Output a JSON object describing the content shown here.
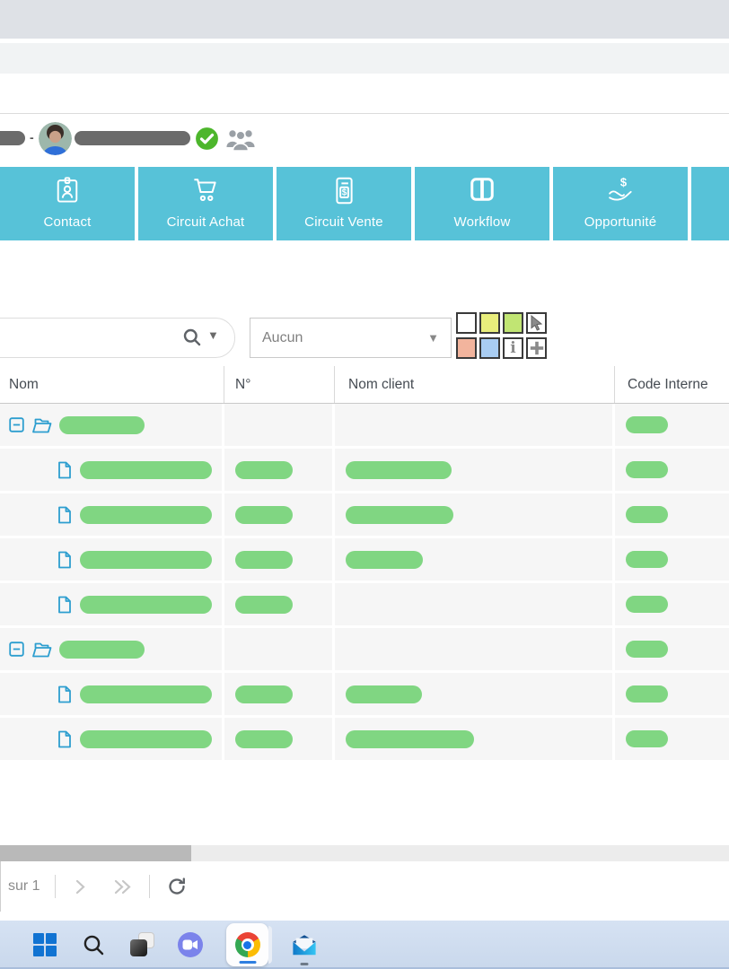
{
  "window": {
    "chrome_strip1_color": "#dee1e6",
    "chrome_strip2_color": "#f1f3f4",
    "taskbar_color": "#cfdeef"
  },
  "record_header": {
    "separator": "-",
    "status": "validated-check",
    "redacted_code_width": 42,
    "redacted_name_width": 129
  },
  "toolbar": {
    "accent_color": "#57c2d8",
    "buttons": [
      {
        "label": "Contact",
        "icon": "id-badge-icon"
      },
      {
        "label": "Circuit Achat",
        "icon": "cart-icon"
      },
      {
        "label": "Circuit Vente",
        "icon": "invoice-icon"
      },
      {
        "label": "Workflow",
        "icon": "columns-icon"
      },
      {
        "label": "Opportunité",
        "icon": "hand-dollar-icon"
      }
    ]
  },
  "filterbar": {
    "search_value": "",
    "search_placeholder": "",
    "category_value": "Aucun"
  },
  "palette": {
    "white": "#ffffff",
    "yellow": "#e9ee7c",
    "green": "#c1e573",
    "salmon": "#f2b49d",
    "blue": "#a9cdf2"
  },
  "table": {
    "columns": [
      "Nom",
      "N°",
      "Nom client",
      "Code Interne"
    ],
    "redaction_bar_color": "#80d682",
    "row_icon_color": "#2d9ecf",
    "rows": [
      {
        "type": "group",
        "name_w": 95,
        "code_w": 47
      },
      {
        "type": "item",
        "name_w": 147,
        "num_w": 64,
        "client_w": 118,
        "code_w": 47
      },
      {
        "type": "item",
        "name_w": 147,
        "num_w": 64,
        "client_w": 120,
        "code_w": 47
      },
      {
        "type": "item",
        "name_w": 147,
        "num_w": 64,
        "client_w": 86,
        "code_w": 47
      },
      {
        "type": "item",
        "name_w": 147,
        "num_w": 64,
        "code_w": 47
      },
      {
        "type": "group",
        "name_w": 95,
        "code_w": 47
      },
      {
        "type": "item",
        "name_w": 147,
        "num_w": 64,
        "client_w": 85,
        "code_w": 47
      },
      {
        "type": "item",
        "name_w": 147,
        "num_w": 64,
        "client_w": 143,
        "code_w": 47
      }
    ]
  },
  "pagination": {
    "page_label": "sur 1"
  },
  "taskbar": {
    "icons": [
      "start",
      "search",
      "task-view",
      "chat",
      "chrome",
      "outlook"
    ],
    "active_app": "chrome"
  }
}
